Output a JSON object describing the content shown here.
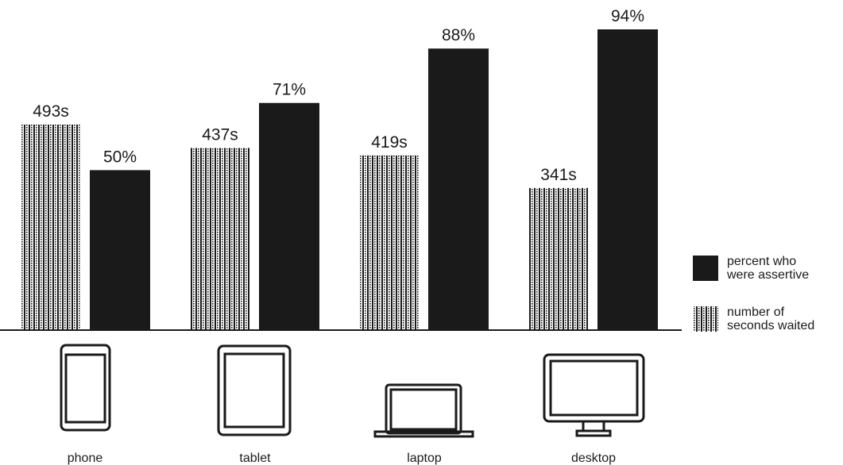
{
  "chart_data": {
    "type": "bar",
    "categories": [
      "phone",
      "tablet",
      "laptop",
      "desktop"
    ],
    "category_icons": [
      "phone-icon",
      "tablet-icon",
      "laptop-icon",
      "desktop-icon"
    ],
    "series": [
      {
        "key": "seconds",
        "values": [
          493,
          437,
          419,
          341
        ],
        "labels": [
          "493s",
          "437s",
          "419s",
          "341s"
        ],
        "pattern": "dotted"
      },
      {
        "key": "percent",
        "values": [
          50,
          71,
          88,
          94
        ],
        "labels": [
          "50%",
          "71%",
          "88%",
          "94%"
        ],
        "color": "#1a1a1a"
      }
    ],
    "legend": {
      "position": "right",
      "items": [
        {
          "key": "percent",
          "lines": [
            "percent who",
            "were assertive"
          ]
        },
        {
          "key": "seconds",
          "lines": [
            "number of",
            "seconds waited"
          ]
        }
      ]
    },
    "title": "",
    "xlabel": "",
    "ylabel": "",
    "grid": false
  }
}
